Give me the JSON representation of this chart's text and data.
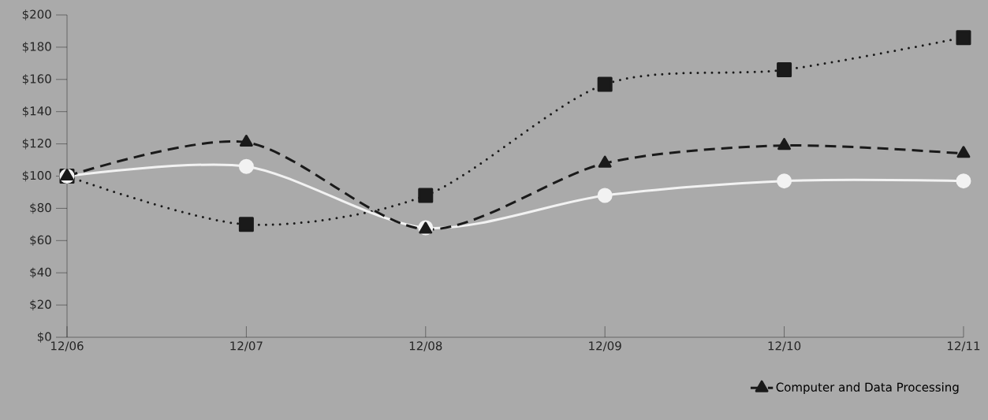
{
  "chart_data": {
    "type": "line",
    "categories": [
      "12/06",
      "12/07",
      "12/08",
      "12/09",
      "12/10",
      "12/11"
    ],
    "series": [
      {
        "color": "#1a1a1a",
        "marker": "square",
        "line_style": "dotted",
        "values": [
          100,
          70,
          88,
          157,
          166,
          186
        ]
      },
      {
        "color": "#f2f2f2",
        "marker": "circle",
        "line_style": "solid",
        "values": [
          100,
          106,
          68,
          88,
          97,
          97
        ]
      },
      {
        "name": "Computer and Data Processing",
        "color": "#1a1a1a",
        "marker": "triangle",
        "line_style": "dashed",
        "values": [
          100,
          121,
          67,
          108,
          119,
          114
        ]
      }
    ],
    "ylim": [
      0,
      200
    ],
    "yticks": [
      {
        "value": 0,
        "label": "$0"
      },
      {
        "value": 20,
        "label": "$20"
      },
      {
        "value": 40,
        "label": "$40"
      },
      {
        "value": 60,
        "label": "$60"
      },
      {
        "value": 80,
        "label": "$80"
      },
      {
        "value": 100,
        "label": "$100"
      },
      {
        "value": 120,
        "label": "$120"
      },
      {
        "value": 140,
        "label": "$140"
      },
      {
        "value": 160,
        "label": "$160"
      },
      {
        "value": 180,
        "label": "$180"
      },
      {
        "value": 200,
        "label": "$200"
      }
    ],
    "grid": false,
    "legend": "bottom right"
  }
}
